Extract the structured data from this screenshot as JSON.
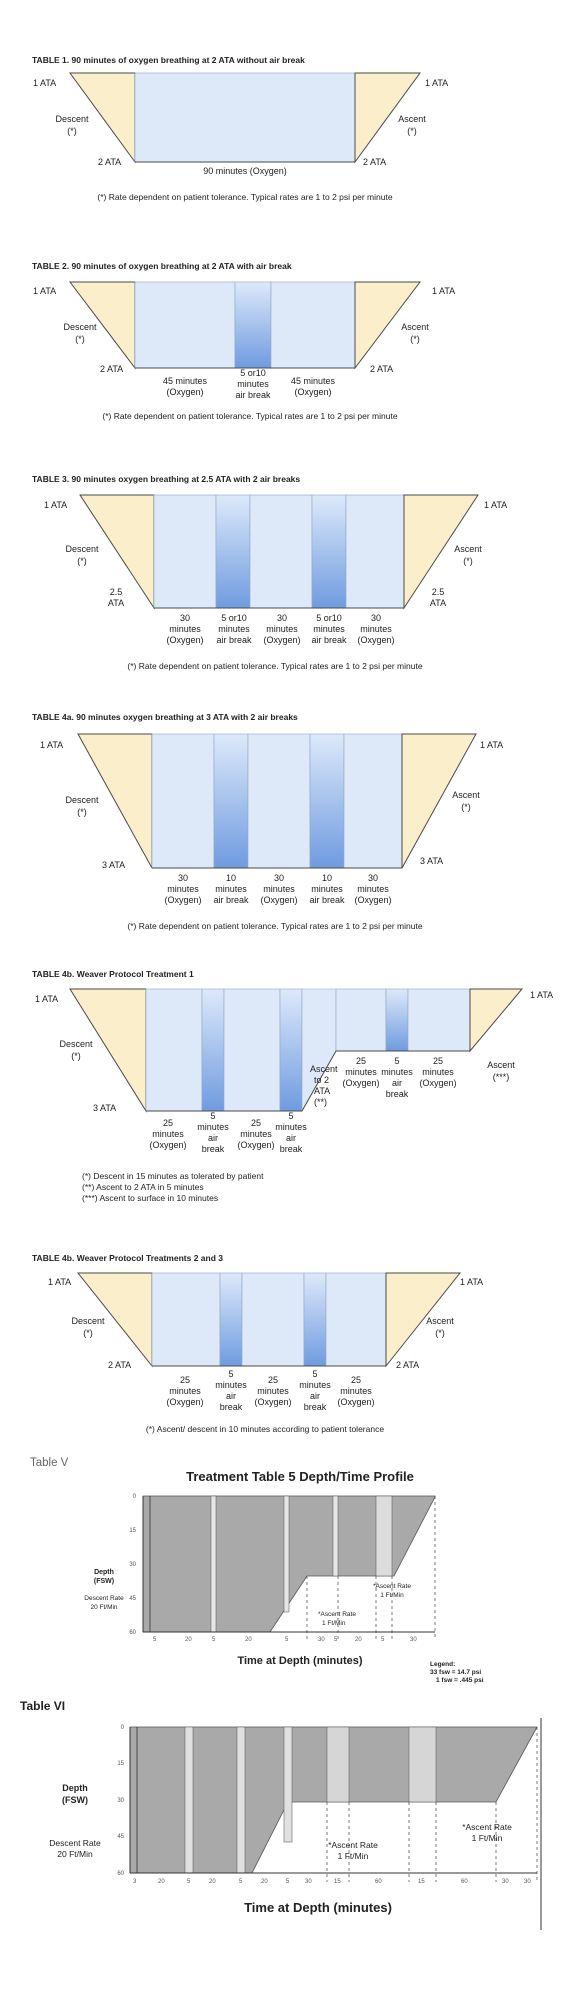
{
  "colors": {
    "wedge": "#fbeecb",
    "wedge_stroke": "#4a4a4a",
    "oxygen": "#dde9f9",
    "airbreak": "#7da4e0",
    "gray": "#a9a9a9",
    "light_gray": "#d9d9d9"
  },
  "t1": {
    "title": "TABLE 1.  90 minutes of oxygen breathing at 2 ATA without air break",
    "ata_left": "1 ATA",
    "ata_right": "1 ATA",
    "descent": [
      "Descent",
      "(*)"
    ],
    "ascent": [
      "Ascent",
      "(*)"
    ],
    "bot_left": "2 ATA",
    "bot_right": "2 ATA",
    "center": "90 minutes (Oxygen)",
    "note": "(*) Rate dependent on patient tolerance. Typical rates are 1 to 2 psi per minute"
  },
  "t2": {
    "title": "TABLE 2. 90 minutes of oxygen breathing at 2 ATA with air break",
    "ata_left": "1 ATA",
    "ata_right": "1 ATA",
    "descent": [
      "Descent",
      "(*)"
    ],
    "ascent": [
      "Ascent",
      "(*)"
    ],
    "bot_left": "2 ATA",
    "bot_right": "2 ATA",
    "seg": [
      [
        "45 minutes",
        "(Oxygen)"
      ],
      [
        "5 or10",
        "minutes",
        "air break"
      ],
      [
        "45 minutes",
        "(Oxygen)"
      ]
    ],
    "note": "(*) Rate dependent on patient tolerance. Typical rates are 1 to 2 psi per minute"
  },
  "t3": {
    "title": "TABLE 3. 90 minutes oxygen breathing at 2.5 ATA with 2 air breaks",
    "ata_left": "1 ATA",
    "ata_right": "1 ATA",
    "descent": [
      "Descent",
      "(*)"
    ],
    "ascent": [
      "Ascent",
      "(*)"
    ],
    "bot_left": [
      "2.5",
      "ATA"
    ],
    "bot_right": [
      "2.5",
      "ATA"
    ],
    "seg": [
      [
        "30",
        "minutes",
        "(Oxygen)"
      ],
      [
        "5 or10",
        "minutes",
        "air break"
      ],
      [
        "30",
        "minutes",
        "(Oxygen)"
      ],
      [
        "5 or10",
        "minutes",
        "air break"
      ],
      [
        "30",
        "minutes",
        "(Oxygen)"
      ]
    ],
    "note": "(*) Rate dependent on patient tolerance. Typical rates are 1 to 2 psi per minute"
  },
  "t4a": {
    "title": "TABLE 4a. 90 minutes oxygen breathing at 3 ATA with 2 air breaks",
    "ata_left": "1 ATA",
    "ata_right": "1 ATA",
    "descent": [
      "Descent",
      "(*)"
    ],
    "ascent": [
      "Ascent",
      "(*)"
    ],
    "bot_left": "3 ATA",
    "bot_right": "3 ATA",
    "seg": [
      [
        "30",
        "minutes",
        "(Oxygen)"
      ],
      [
        "10",
        "minutes",
        "air break"
      ],
      [
        "30",
        "minutes",
        "(Oxygen)"
      ],
      [
        "10",
        "minutes",
        "air break"
      ],
      [
        "30",
        "minutes",
        "(Oxygen)"
      ]
    ],
    "note": "(*) Rate dependent on patient tolerance. Typical rates are 1 to 2 psi per minute"
  },
  "t4b1": {
    "title": "TABLE 4b. Weaver Protocol Treatment 1",
    "ata_left": "1 ATA",
    "ata_right": "1 ATA",
    "descent": [
      "Descent",
      "(*)"
    ],
    "ascent": [
      "Ascent",
      "(***)"
    ],
    "bot_left": "3 ATA",
    "seg_low": [
      [
        "25",
        "minutes",
        "(Oxygen)"
      ],
      [
        "5",
        "minutes",
        "air",
        "break"
      ],
      [
        "25",
        "minutes",
        "(Oxygen)"
      ],
      [
        "5",
        "minutes",
        "air",
        "break"
      ]
    ],
    "ascent2": [
      "Ascent",
      "to 2",
      "ATA",
      "(**)"
    ],
    "seg_high": [
      [
        "25",
        "minutes",
        "(Oxygen)"
      ],
      [
        "5",
        "minutes",
        "air",
        "break"
      ],
      [
        "25",
        "minutes",
        "(Oxygen)"
      ]
    ],
    "notes": [
      "(*) Descent in 15 minutes as tolerated by patient",
      "(**) Ascent to 2 ATA in 5 minutes",
      "(***) Ascent to surface in 10 minutes"
    ]
  },
  "t4b23": {
    "title": "TABLE 4b. Weaver Protocol Treatments 2 and 3",
    "ata_left": "1 ATA",
    "ata_right": "1 ATA",
    "descent": [
      "Descent",
      "(*)"
    ],
    "ascent": [
      "Ascent",
      "(*)"
    ],
    "bot_left": "2 ATA",
    "bot_right": "2 ATA",
    "seg": [
      [
        "25",
        "minutes",
        "(Oxygen)"
      ],
      [
        "5",
        "minutes",
        "air",
        "break"
      ],
      [
        "25",
        "minutes",
        "(Oxygen)"
      ],
      [
        "5",
        "minutes",
        "air",
        "break"
      ],
      [
        "25",
        "minutes",
        "(Oxygen)"
      ]
    ],
    "note": "(*) Ascent/ descent in 10 minutes according to patient tolerance"
  },
  "t5": {
    "label": "Table V",
    "title": "Treatment Table 5 Depth/Time Profile",
    "ylabel": [
      "Depth",
      "(FSW)"
    ],
    "yticks": [
      "0",
      "15",
      "30",
      "45",
      "60"
    ],
    "descent": [
      "Descent Rate",
      "20 Ft/Min"
    ],
    "ascent1": [
      "*Ascent Rate",
      "1 Ft/Min"
    ],
    "ascent2": [
      "*Ascent Rate",
      "1 Ft/Min"
    ],
    "xticks": [
      "5",
      "20",
      "5",
      "20",
      "5",
      "30",
      "5",
      "20",
      "5",
      "30"
    ],
    "xlabel": "Time at Depth (minutes)",
    "legend": [
      "Legend:",
      "33 fsw = 14.7 psi",
      "1 fsw = .445 psi"
    ]
  },
  "t6": {
    "label": "Table VI",
    "ylabel": [
      "Depth",
      "(FSW)"
    ],
    "yticks": [
      "0",
      "15",
      "30",
      "45",
      "60"
    ],
    "descent": [
      "Descent Rate",
      "20 Ft/Min"
    ],
    "ascent1": [
      "*Ascent Rate",
      "1 Ft/Min"
    ],
    "ascent2": [
      "*Ascent Rate",
      "1 Ft/Min"
    ],
    "xticks": [
      "3",
      "20",
      "5",
      "20",
      "5",
      "20",
      "5",
      "30",
      "15",
      "60",
      "15",
      "60",
      "30",
      "30"
    ],
    "xlabel": "Time at Depth (minutes)"
  }
}
